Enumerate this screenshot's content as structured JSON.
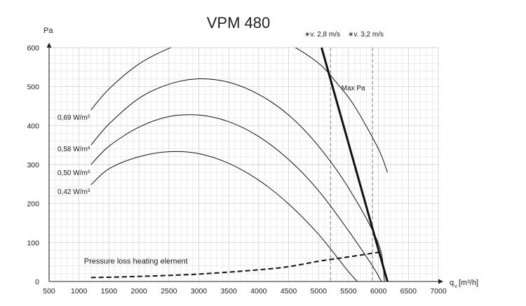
{
  "chart_data": {
    "type": "line",
    "title": "VPM 480",
    "xlabel": "q",
    "xlabel_sub": "v",
    "xlabel_unit": "[m³/h]",
    "ylabel": "Pa",
    "xlim": [
      500,
      7000
    ],
    "ylim": [
      0,
      600
    ],
    "x_ticks": [
      "500",
      "1000",
      "1500",
      "2000",
      "2500",
      "3000",
      "3500",
      "4000",
      "4500",
      "5000",
      "5500",
      "6000",
      "6500",
      "7000"
    ],
    "y_ticks": [
      "0",
      "100",
      "200",
      "300",
      "400",
      "500",
      "600"
    ],
    "grid": true,
    "series": [
      {
        "name": "0,69 W/m³",
        "x": [
          1200,
          1500,
          2000,
          2500,
          2800
        ],
        "y": [
          440,
          494,
          558,
          598,
          612
        ],
        "label_at": [
          1000,
          422
        ]
      },
      {
        "name": "0,69 W/m³",
        "x": [
          4000,
          4500,
          5000,
          5300,
          5600,
          6000,
          6150
        ],
        "y": [
          645,
          610,
          560,
          510,
          450,
          340,
          280
        ],
        "label_at": null
      },
      {
        "name": "0,58 W/m³",
        "x": [
          1200,
          1500,
          2000,
          2500,
          3000,
          3500,
          4000,
          4500,
          5000,
          5500,
          6000,
          6100
        ],
        "y": [
          350,
          404,
          470,
          506,
          520,
          511,
          480,
          427,
          347,
          240,
          97,
          0
        ],
        "label_at": [
          1000,
          341
        ]
      },
      {
        "name": "0,50 W/m³",
        "x": [
          1200,
          1500,
          2000,
          2500,
          3000,
          3500,
          4000,
          4500,
          5000,
          5500,
          5900,
          6050
        ],
        "y": [
          300,
          347,
          396,
          423,
          427,
          410,
          372,
          313,
          233,
          130,
          40,
          0
        ],
        "label_at": [
          1000,
          280
        ]
      },
      {
        "name": "0,42 W/m³",
        "x": [
          1200,
          1500,
          2000,
          2500,
          3000,
          3500,
          4000,
          4500,
          5000,
          5500,
          5650
        ],
        "y": [
          248,
          289,
          320,
          333,
          328,
          303,
          260,
          199,
          121,
          25,
          0
        ],
        "label_at": [
          1000,
          232
        ]
      },
      {
        "name": "Pressure loss heating element",
        "x": [
          1200,
          2000,
          3000,
          4000,
          4500,
          5000,
          5500,
          6000
        ],
        "y": [
          10,
          13,
          19,
          30,
          38,
          52,
          63,
          75
        ],
        "label_at": [
          1200,
          46
        ],
        "dashed": true
      }
    ],
    "max_line": {
      "label": "Max Pa",
      "x": [
        5050,
        6150
      ],
      "y": [
        600,
        0
      ],
      "label_at": [
        5380,
        498
      ]
    },
    "velocity_lines": [
      {
        "label": "∗v. 2,8 m/s",
        "x": 5200
      },
      {
        "label": "∗v. 3,2 m/s",
        "x": 5900
      }
    ]
  }
}
